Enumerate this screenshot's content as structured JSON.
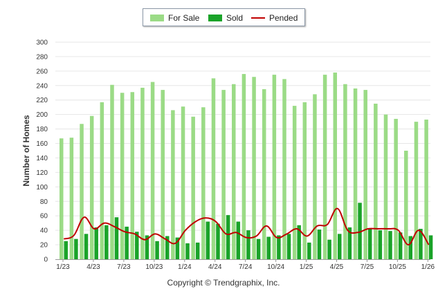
{
  "legend": {
    "for_sale": "For Sale",
    "sold": "Sold",
    "pended": "Pended"
  },
  "colors": {
    "for_sale": "#9bdb86",
    "sold": "#1aa329",
    "pended": "#c00000",
    "grid": "#e6e6e6"
  },
  "copyright": "Copyright © Trendgraphix, Inc.",
  "chart_data": {
    "type": "bar",
    "title": "",
    "xlabel": "",
    "ylabel": "Number of Homes",
    "ylim": [
      0,
      300
    ],
    "ytick_step": 20,
    "grid": true,
    "legend_position": "top-center",
    "x_tick_labels": [
      {
        "index": 0,
        "label": "1/23"
      },
      {
        "index": 3,
        "label": "4/23"
      },
      {
        "index": 6,
        "label": "7/23"
      },
      {
        "index": 9,
        "label": "10/23"
      },
      {
        "index": 12,
        "label": "1/24"
      },
      {
        "index": 15,
        "label": "4/24"
      },
      {
        "index": 18,
        "label": "7/24"
      },
      {
        "index": 21,
        "label": "10/24"
      },
      {
        "index": 24,
        "label": "1/25"
      },
      {
        "index": 27,
        "label": "4/25"
      },
      {
        "index": 30,
        "label": "7/25"
      },
      {
        "index": 33,
        "label": "10/25"
      },
      {
        "index": 36,
        "label": "1/26"
      }
    ],
    "categories": [
      "1/23",
      "2/23",
      "3/23",
      "4/23",
      "5/23",
      "6/23",
      "7/23",
      "8/23",
      "9/23",
      "10/23",
      "11/23",
      "12/23",
      "1/24",
      "2/24",
      "3/24",
      "4/24",
      "5/24",
      "6/24",
      "7/24",
      "8/24",
      "9/24",
      "10/24",
      "11/24",
      "12/24",
      "1/25",
      "2/25",
      "3/25",
      "4/25",
      "5/25",
      "6/25",
      "7/25",
      "8/25",
      "9/25",
      "10/25",
      "11/25",
      "12/25",
      "1/26"
    ],
    "series": [
      {
        "name": "For Sale",
        "type": "bar",
        "values": [
          167,
          168,
          187,
          198,
          217,
          241,
          230,
          231,
          237,
          245,
          234,
          206,
          211,
          197,
          210,
          250,
          234,
          242,
          256,
          252,
          235,
          255,
          249,
          212,
          217,
          228,
          255,
          258,
          242,
          236,
          234,
          215,
          200,
          194,
          150,
          190,
          193
        ]
      },
      {
        "name": "Sold",
        "type": "bar",
        "values": [
          25,
          28,
          35,
          44,
          47,
          58,
          45,
          38,
          33,
          25,
          32,
          30,
          22,
          23,
          52,
          49,
          61,
          52,
          40,
          28,
          31,
          33,
          35,
          47,
          23,
          41,
          27,
          35,
          44,
          78,
          43,
          40,
          39,
          37,
          32,
          42,
          33
        ]
      },
      {
        "name": "Pended",
        "type": "line",
        "values": [
          28,
          33,
          58,
          42,
          50,
          45,
          38,
          35,
          27,
          35,
          28,
          22,
          40,
          52,
          57,
          52,
          35,
          37,
          30,
          32,
          46,
          30,
          35,
          42,
          32,
          46,
          48,
          70,
          40,
          37,
          42,
          42,
          42,
          40,
          20,
          40,
          20
        ]
      }
    ]
  }
}
